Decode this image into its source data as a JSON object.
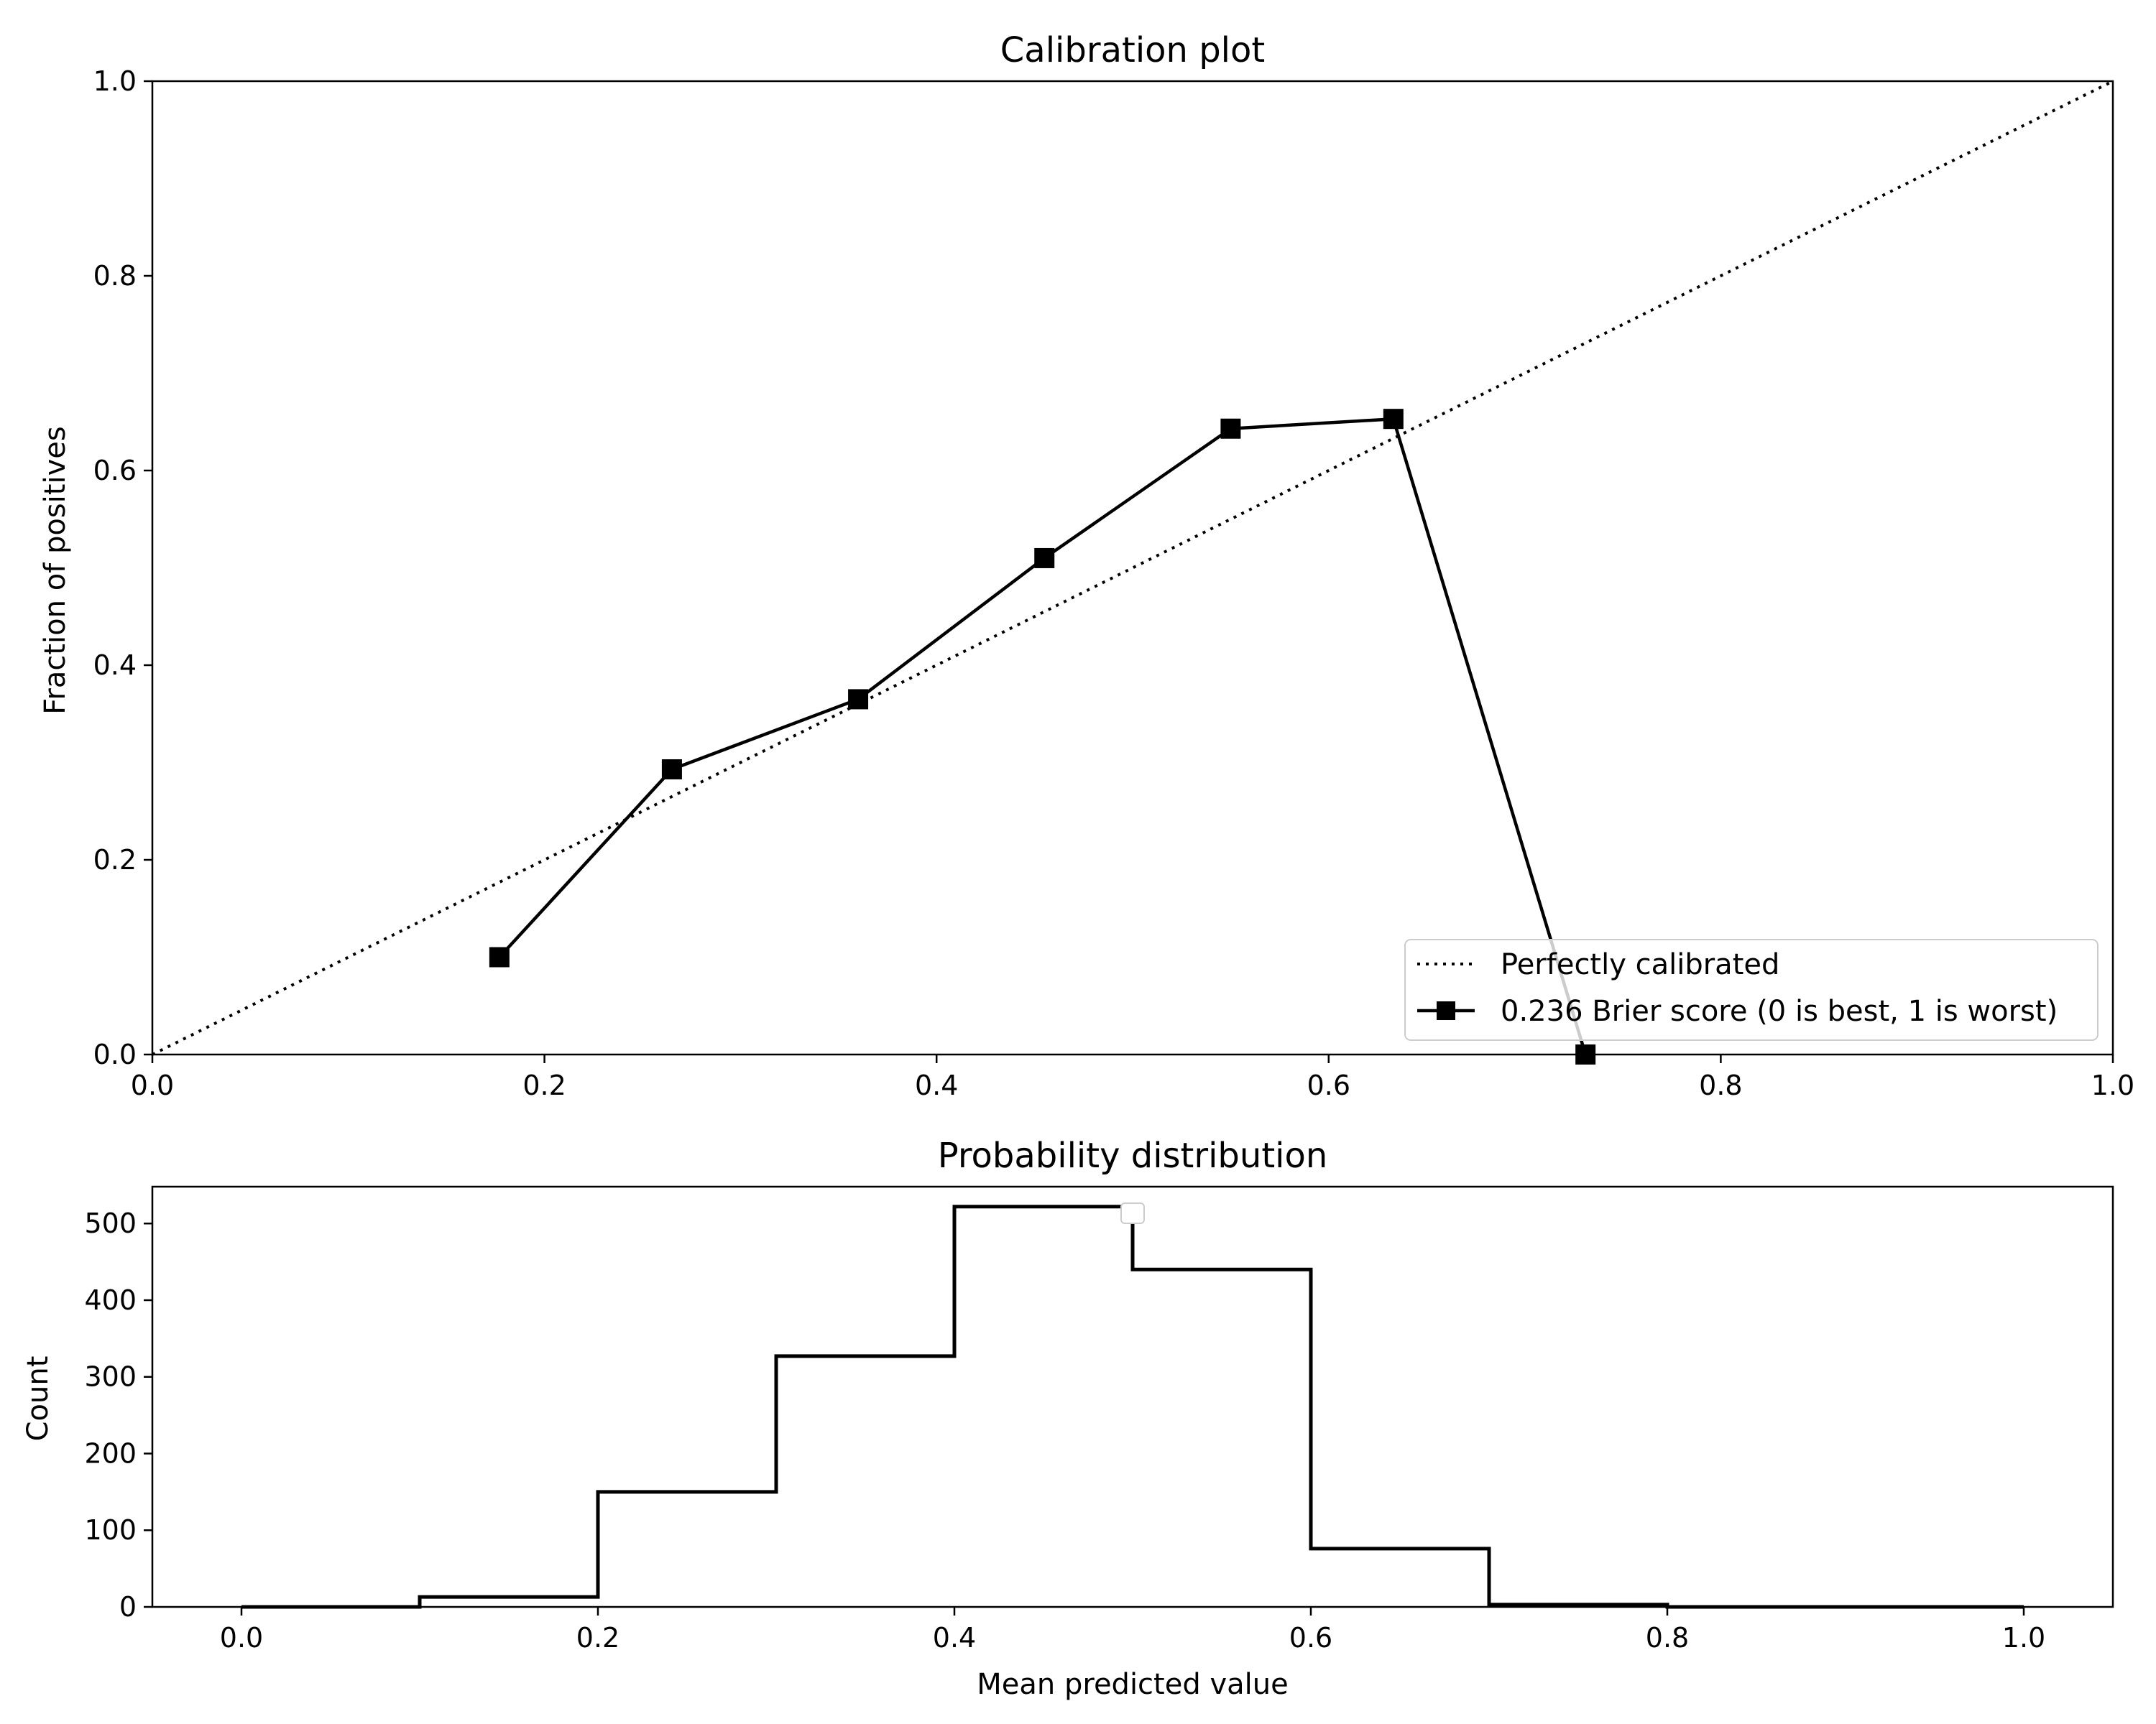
{
  "chart_data": [
    {
      "type": "line",
      "title": "Calibration plot",
      "xlabel": "",
      "ylabel": "Fraction of positives",
      "xlim": [
        0,
        1
      ],
      "ylim": [
        0,
        1
      ],
      "xticks": [
        "0.0",
        "0.2",
        "0.4",
        "0.6",
        "0.8",
        "1.0"
      ],
      "yticks": [
        "0.0",
        "0.2",
        "0.4",
        "0.6",
        "0.8",
        "1.0"
      ],
      "grid": false,
      "legend": "bottom-right",
      "series": [
        {
          "name": "Perfectly calibrated",
          "style": "dotted",
          "x": [
            0,
            1
          ],
          "y": [
            0,
            1
          ]
        },
        {
          "name": "0.236 Brier score (0 is best, 1 is worst)",
          "style": "solid",
          "marker": "square",
          "x": [
            0.177,
            0.265,
            0.36,
            0.455,
            0.55,
            0.633,
            0.731
          ],
          "y": [
            0.1,
            0.293,
            0.365,
            0.51,
            0.643,
            0.653,
            0.0
          ]
        }
      ]
    },
    {
      "type": "histogram",
      "title": "Probability distribution",
      "xlabel": "Mean predicted value",
      "ylabel": "Count",
      "xlim": [
        -0.05,
        1.05
      ],
      "ylim": [
        0,
        548
      ],
      "xticks": [
        "0.0",
        "0.2",
        "0.4",
        "0.6",
        "0.8",
        "1.0"
      ],
      "yticks": [
        "0",
        "100",
        "200",
        "300",
        "400",
        "500"
      ],
      "histtype": "step",
      "bin_edges": [
        0.0,
        0.1,
        0.2,
        0.3,
        0.4,
        0.5,
        0.6,
        0.7,
        0.8,
        0.9,
        1.0
      ],
      "counts": [
        0,
        13,
        150,
        327,
        522,
        440,
        76,
        3,
        0,
        0
      ]
    }
  ],
  "colors": {
    "line": "#000000",
    "background": "#ffffff",
    "legend_border": "#cccccc"
  }
}
